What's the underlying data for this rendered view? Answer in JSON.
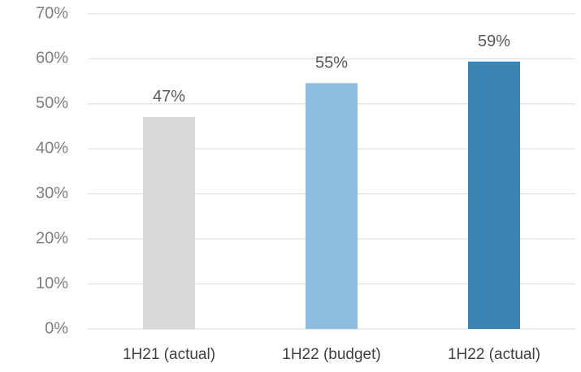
{
  "chart_data": {
    "type": "bar",
    "categories": [
      "1H21 (actual)",
      "1H22 (budget)",
      "1H22 (actual)"
    ],
    "values": [
      47.1,
      54.6,
      59.4
    ],
    "value_labels": [
      "47%",
      "55%",
      "59%"
    ],
    "colors": [
      "#d9d9d9",
      "#8dbcdd",
      "#3a84b6"
    ],
    "ylim": [
      0,
      70
    ],
    "yticks": [
      {
        "value": 0,
        "label": "0%"
      },
      {
        "value": 10,
        "label": "10%"
      },
      {
        "value": 20,
        "label": "20%"
      },
      {
        "value": 30,
        "label": "30%"
      },
      {
        "value": 40,
        "label": "40%"
      },
      {
        "value": 50,
        "label": "50%"
      },
      {
        "value": 60,
        "label": "60%"
      },
      {
        "value": 70,
        "label": "70%"
      }
    ],
    "grid": true
  }
}
